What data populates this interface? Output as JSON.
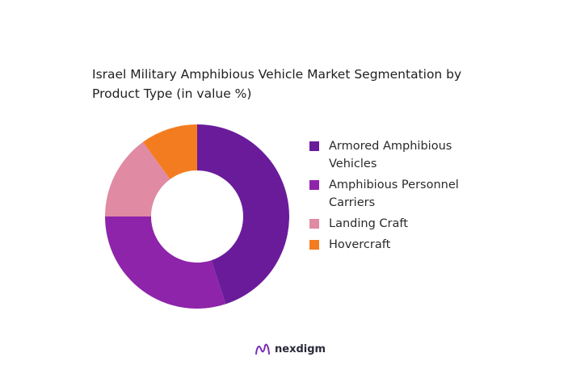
{
  "chart_data": {
    "type": "pie",
    "title": "Israel Military Amphibious Vehicle Market Segmentation by Product Type (in value %)",
    "categories": [
      "Armored Amphibious Vehicles",
      "Amphibious Personnel Carriers",
      "Landing Craft",
      "Hovercraft"
    ],
    "values": [
      45,
      30,
      15,
      10
    ],
    "colors": [
      "#6a1b9a",
      "#8e24aa",
      "#e08aa3",
      "#f47c20"
    ],
    "legend_position": "right"
  },
  "brand": {
    "name": "nexdigm",
    "icon": "nexdigm-logo-icon"
  }
}
